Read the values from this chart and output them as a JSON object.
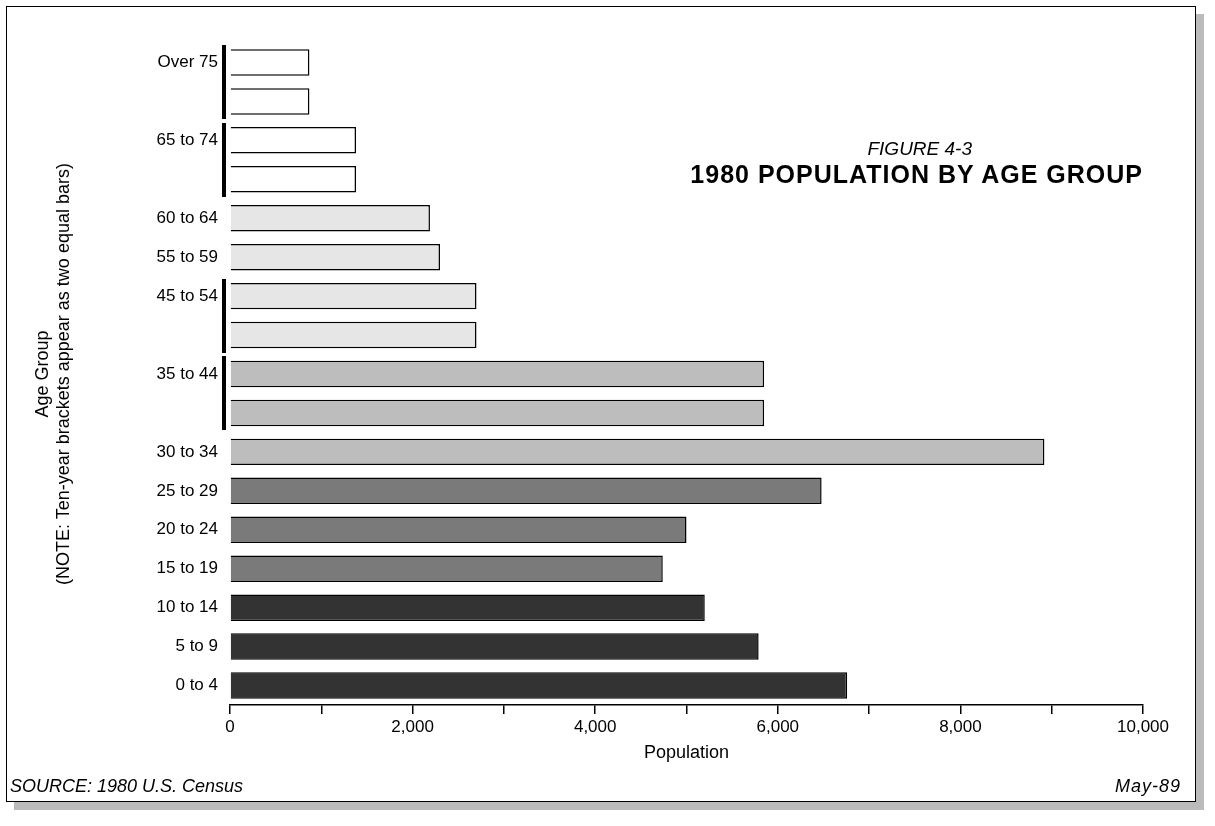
{
  "chart_data": {
    "type": "bar",
    "orientation": "horizontal",
    "subtitle": "FIGURE 4-3",
    "title": "1980 POPULATION BY AGE GROUP",
    "xlabel": "Population",
    "ylabel": "Age Group\n(NOTE: Ten-year brackets appear as two equal bars)",
    "categories": [
      "Over 75",
      null,
      "65 to 74",
      null,
      "60 to 64",
      "55 to 59",
      "45 to 54",
      null,
      "35 to 44",
      null,
      "30 to 34",
      "25 to 29",
      "20 to 24",
      "15 to 19",
      "10 to 14",
      "5 to 9",
      "0 to 4"
    ],
    "values": [
      870,
      870,
      1380,
      1380,
      2190,
      2300,
      2700,
      2700,
      5850,
      5850,
      8920,
      6480,
      5000,
      4740,
      5200,
      5790,
      6760
    ],
    "colors": [
      "#ffffff",
      "#ffffff",
      "#ffffff",
      "#ffffff",
      "#e6e6e6",
      "#e6e6e6",
      "#e6e6e6",
      "#e6e6e6",
      "#bdbdbd",
      "#bdbdbd",
      "#bdbdbd",
      "#7a7a7a",
      "#7a7a7a",
      "#7a7a7a",
      "#333333",
      "#333333",
      "#333333"
    ],
    "xlim": [
      0,
      10000
    ],
    "xticks": [
      0,
      {
        "value": 1000,
        "label": null
      },
      {
        "value": 2000,
        "label": "2,000"
      },
      {
        "value": 3000,
        "label": null
      },
      {
        "value": 4000,
        "label": "4,000"
      },
      {
        "value": 5000,
        "label": null
      },
      {
        "value": 6000,
        "label": "6,000"
      },
      {
        "value": 7000,
        "label": null
      },
      {
        "value": 8000,
        "label": "8,000"
      },
      {
        "value": 9000,
        "label": null
      },
      {
        "value": 10000,
        "label": "10,000"
      }
    ],
    "grid": false,
    "legend": false,
    "annotations": [
      "SOURCE: 1980 U.S. Census",
      "May-89"
    ]
  }
}
